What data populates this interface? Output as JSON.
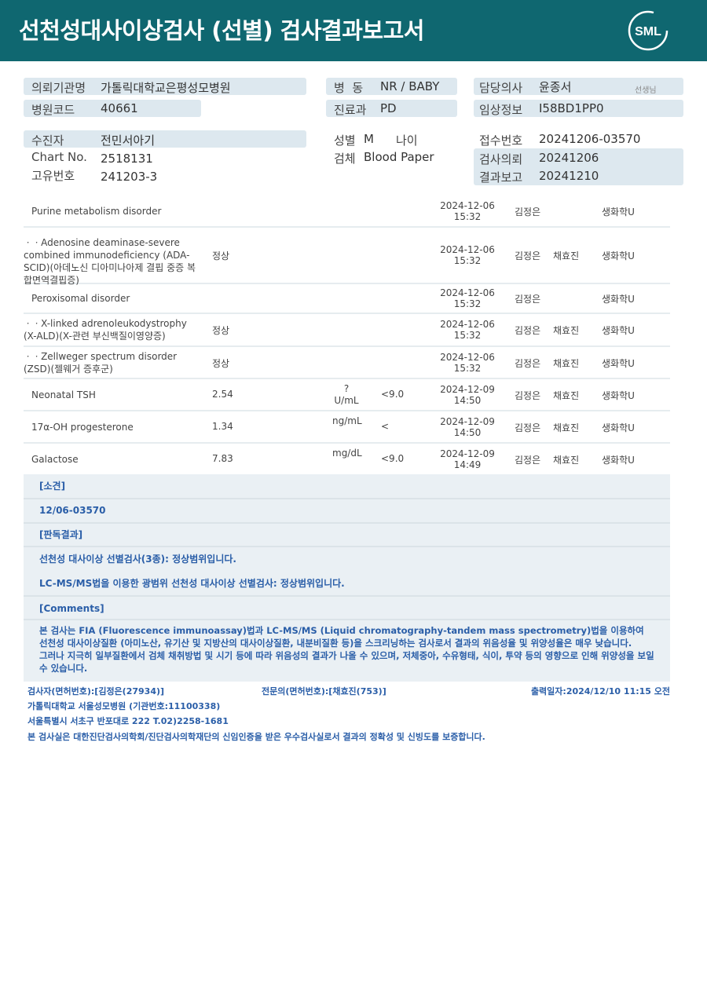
{
  "header": {
    "title": "선천성대사이상검사 (선별) 검사결과보고서",
    "logo_text": "SML"
  },
  "colors": {
    "header_bg": "#0f6770",
    "info_box": "#dde8ef",
    "note_text": "#2a5ea8"
  },
  "info": {
    "institution_label": "의뢰기관명",
    "institution": "가톨릭대학교은평성모병원",
    "hospital_code_label": "병원코드",
    "hospital_code": "40661",
    "ward_label": "병  동",
    "ward": "NR / BABY",
    "dept_label": "진료과",
    "dept": "PD",
    "doctor_label": "담당의사",
    "doctor": "윤종서",
    "doctor_suffix": "선생님",
    "clinical_label": "임상정보",
    "clinical": "I58BD1PP0",
    "patient_label": "수진자",
    "patient": "전민서아기",
    "chart_label": "Chart No.",
    "chart": "2518131",
    "unique_label": "고유번호",
    "unique": "241203-3",
    "sex_label": "성별",
    "sex": "M",
    "age_label": "나이",
    "specimen_label": "검체",
    "specimen": "Blood Paper",
    "receipt_label": "접수번호",
    "receipt": "20241206-03570",
    "request_label": "검사의뢰",
    "request": "20241206",
    "report_label": "결과보고",
    "report": "20241210"
  },
  "results": [
    {
      "name": "Purine metabolism disorder",
      "top": true,
      "result": "",
      "unit": "",
      "ref": "",
      "date": "2024-12-06",
      "time": "15:32",
      "p1": "김정은",
      "p2": "",
      "dept": "생화학U"
    },
    {
      "name": "ㆍㆍAdenosine deaminase-severe combined immunodeficiency (ADA-SCID)(아데노신 디아미나아제 결핍 중증 복합면역결핍증)",
      "top": false,
      "result": "정상",
      "unit": "",
      "ref": "",
      "date": "2024-12-06",
      "time": "15:32",
      "p1": "김정은",
      "p2": "채효진",
      "dept": "생화학U"
    },
    {
      "name": "Peroxisomal disorder",
      "top": true,
      "result": "",
      "unit": "",
      "ref": "",
      "date": "2024-12-06",
      "time": "15:32",
      "p1": "김정은",
      "p2": "",
      "dept": "생화학U"
    },
    {
      "name": "ㆍㆍX-linked adrenoleukodystrophy (X-ALD)(X-관련 부신백질이영양증)",
      "top": false,
      "result": "정상",
      "unit": "",
      "ref": "",
      "date": "2024-12-06",
      "time": "15:32",
      "p1": "김정은",
      "p2": "채효진",
      "dept": "생화학U"
    },
    {
      "name": "ㆍㆍZellweger spectrum disorder (ZSD)(젤웨거 증후군)",
      "top": false,
      "result": "정상",
      "unit": "",
      "ref": "",
      "date": "2024-12-06",
      "time": "15:32",
      "p1": "김정은",
      "p2": "채효진",
      "dept": "생화학U"
    },
    {
      "name": "Neonatal TSH",
      "top": true,
      "result": "2.54",
      "unit": "?U/mL",
      "ref": "<9.0",
      "date": "2024-12-09",
      "time": "14:50",
      "p1": "김정은",
      "p2": "채효진",
      "dept": "생화학U"
    },
    {
      "name": "17α-OH progesterone",
      "top": true,
      "result": "1.34",
      "unit": "ng/mL",
      "ref": "<",
      "date": "2024-12-09",
      "time": "14:50",
      "p1": "김정은",
      "p2": "채효진",
      "dept": "생화학U"
    },
    {
      "name": "Galactose",
      "top": true,
      "result": "7.83",
      "unit": "mg/dL",
      "ref": "<9.0",
      "date": "2024-12-09",
      "time": "14:49",
      "p1": "김정은",
      "p2": "채효진",
      "dept": "생화학U"
    }
  ],
  "comments": {
    "finding_label": "[소견]",
    "finding": "12/06-03570",
    "interp_label": "[판독결과]",
    "interp1": "선천성 대사이상 선별검사(3종): 정상범위입니다.",
    "interp2": "LC-MS/MS법을 이용한 광범위 선천성 대사이상 선별검사: 정상범위입니다.",
    "comments_label": "[Comments]",
    "c1": "본 검사는 FIA (Fluorescence immunoassay)법과 LC-MS/MS (Liquid chromatography-tandem mass spectrometry)법을 이용하여 선천성 대사이상질환 (아미노산, 유기산 및 지방산의 대사이상질환, 내분비질환 등)을 스크리닝하는 검사로서 결과의 위음성율 및 위양성율은 매우 낮습니다.",
    "c2": "그러나 지극히 일부질환에서 검체 채취방법 및 시기 등에 따라 위음성의 결과가 나올 수 있으며, 저체중아, 수유형태, 식이, 투약 등의 영향으로 인해 위양성을 보일 수 있습니다."
  },
  "footer": {
    "tester": "검사자(면허번호):[김정은(27934)]",
    "specialist": "전문의(면허번호):[채효진(753)]",
    "printed": "출력일자:2024/12/10 11:15 오전",
    "hospital": "가톨릭대학교 서울성모병원 (기관번호:11100338)",
    "address": "서울특별시 서초구 반포대로 222 T.02)2258-1681",
    "cert": "본 검사실은 대한진단검사의학회/진단검사의학재단의 신임인증을 받은 우수검사실로서 결과의 정확성 및 신빙도를 보증합니다."
  }
}
